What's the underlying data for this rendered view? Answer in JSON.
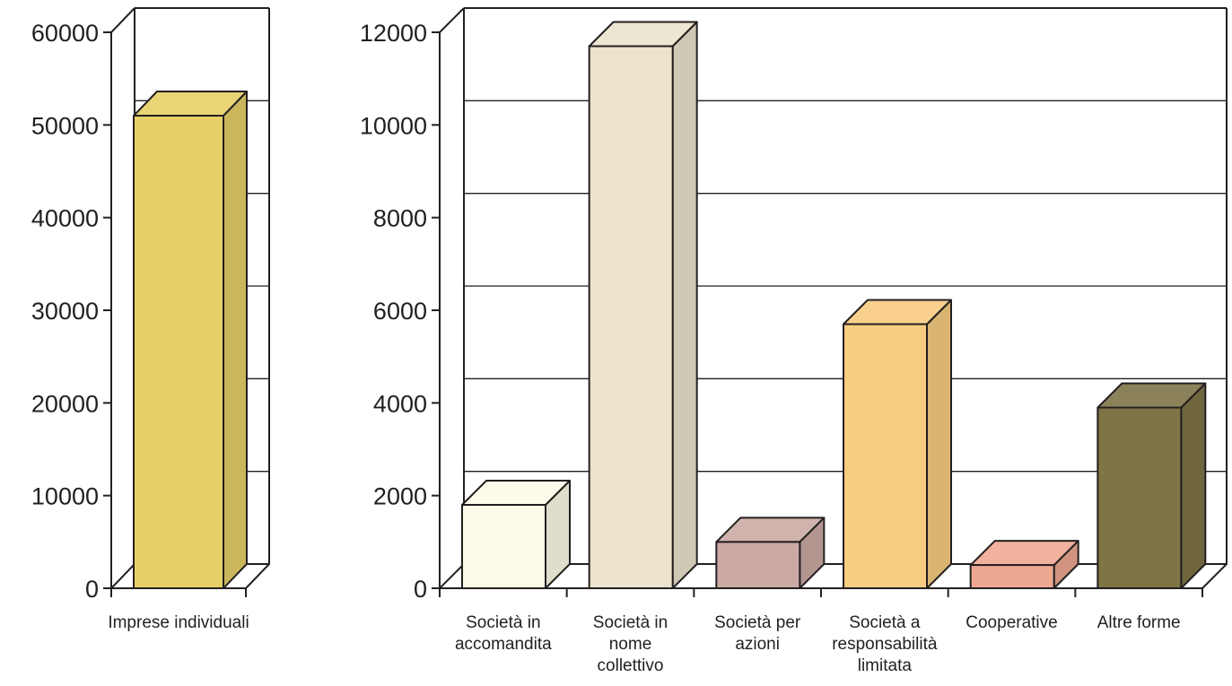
{
  "chart_data": [
    {
      "type": "bar",
      "categories": [
        "Imprese individuali"
      ],
      "values": [
        51000
      ],
      "yticks": [
        "0",
        "10000",
        "20000",
        "30000",
        "40000",
        "50000",
        "60000"
      ],
      "ylim": [
        0,
        60000
      ],
      "grid": true,
      "colors": [
        "#e6cf67"
      ]
    },
    {
      "type": "bar",
      "categories": [
        [
          "Società in",
          "accomandita"
        ],
        [
          "Società in",
          "nome",
          "collettivo"
        ],
        [
          "Società per",
          "azioni"
        ],
        [
          "Società a",
          "responsabilità",
          "limitata"
        ],
        [
          "Cooperative"
        ],
        [
          "Altre forme"
        ]
      ],
      "values": [
        1800,
        11700,
        1000,
        5700,
        500,
        3900
      ],
      "yticks": [
        "0",
        "2000",
        "4000",
        "6000",
        "8000",
        "10000",
        "12000"
      ],
      "ylim": [
        0,
        12000
      ],
      "grid": true,
      "colors": [
        "#fdfbe8",
        "#ebe3cc",
        "#ccaaa4",
        "#f8cc80",
        "#eea892",
        "#7e7446"
      ]
    }
  ]
}
